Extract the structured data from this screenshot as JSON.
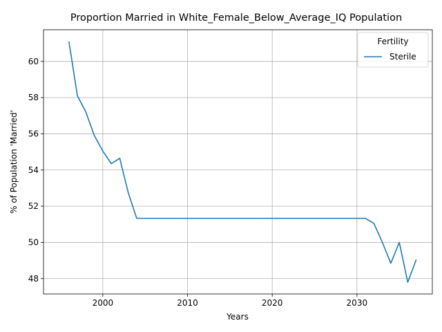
{
  "chart_data": {
    "type": "line",
    "title": "Proportion Married in White_Female_Below_Average_IQ Population",
    "xlabel": "Years",
    "ylabel": "% of Population 'Married'",
    "xlim": [
      1993.0,
      2038.9
    ],
    "ylim": [
      47.15,
      61.75
    ],
    "x_ticks": [
      2000,
      2010,
      2020,
      2030
    ],
    "y_ticks": [
      48,
      50,
      52,
      54,
      56,
      58,
      60
    ],
    "x_tick_labels": [
      "2000",
      "2010",
      "2020",
      "2030"
    ],
    "y_tick_labels": [
      "48",
      "50",
      "52",
      "54",
      "56",
      "58",
      "60"
    ],
    "grid": true,
    "legend": {
      "title": "Fertility",
      "placement": "top-right"
    },
    "series": [
      {
        "name": "Sterile",
        "color": "#1f77b4",
        "x": [
          1996,
          1997,
          1998,
          1999,
          2000,
          2001,
          2002,
          2003,
          2004,
          2005,
          2006,
          2007,
          2008,
          2009,
          2010,
          2011,
          2012,
          2013,
          2014,
          2015,
          2016,
          2017,
          2018,
          2019,
          2020,
          2021,
          2022,
          2023,
          2024,
          2025,
          2026,
          2027,
          2028,
          2029,
          2030,
          2031,
          2032,
          2033,
          2034,
          2035,
          2036,
          2037
        ],
        "y": [
          61.1,
          58.1,
          57.2,
          55.9,
          55.05,
          54.35,
          54.65,
          52.75,
          51.33,
          51.33,
          51.33,
          51.33,
          51.33,
          51.33,
          51.33,
          51.33,
          51.33,
          51.33,
          51.33,
          51.33,
          51.33,
          51.33,
          51.33,
          51.33,
          51.33,
          51.33,
          51.33,
          51.33,
          51.33,
          51.33,
          51.33,
          51.33,
          51.33,
          51.33,
          51.33,
          51.33,
          51.05,
          50.0,
          48.85,
          50.0,
          47.8,
          49.05
        ]
      }
    ]
  }
}
